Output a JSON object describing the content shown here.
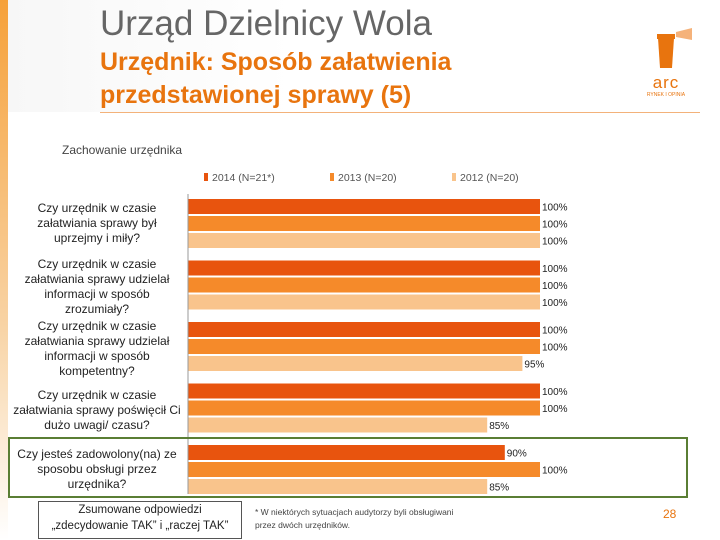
{
  "header": {
    "title": "Urząd Dzielnicy Wola",
    "subtitle_line1": "Urzędnik: Sposób załatwienia",
    "subtitle_line2": "przedstawionej sprawy (5)",
    "logo_text": "arc",
    "logo_small": "RYNEK I OPINIA"
  },
  "colors": {
    "orange_dark": "#e8540e",
    "orange_mid": "#f58a2a",
    "orange_light": "#f9c48c",
    "accent": "#e8740e",
    "highlight_border": "#5a7e34"
  },
  "chart_data": {
    "type": "bar",
    "orientation": "horizontal",
    "title": "Zachowanie urzędnika",
    "categories": [
      "Czy urzędnik w czasie załatwiania sprawy był uprzejmy i miły?",
      "Czy urzędnik w czasie załatwiania sprawy udzielał informacji w sposób zrozumiały?",
      "Czy urzędnik w czasie załatwiania sprawy udzielał informacji w sposób kompetentny?",
      "Czy urzędnik w czasie załatwiania sprawy poświęcił Ci dużo uwagi/ czasu?",
      "Czy jesteś zadowolony(na) ze sposobu obsługi przez urzędnika?"
    ],
    "series": [
      {
        "name": "2014 (N=21*)",
        "values": [
          100,
          100,
          100,
          100,
          90
        ]
      },
      {
        "name": "2013 (N=20)",
        "values": [
          100,
          100,
          100,
          100,
          100
        ]
      },
      {
        "name": "2012 (N=20)",
        "values": [
          100,
          100,
          95,
          85,
          85
        ]
      }
    ],
    "value_suffix": "%",
    "xlim": [
      0,
      100
    ],
    "legend_position": "top",
    "highlighted_category": "Czy jesteś zadowolony(na) ze sposobu obsługi przez urzędnika?"
  },
  "qlabels": [
    "Czy urzędnik w czasie załatwiania sprawy był uprzejmy i miły?",
    "Czy urzędnik w czasie załatwiania sprawy udzielał informacji w sposób zrozumiały?",
    "Czy urzędnik w czasie załatwiania sprawy udzielał informacji w sposób kompetentny?",
    "Czy urzędnik w czasie załatwiania sprawy poświęcił Ci dużo uwagi/ czasu?",
    "Czy jesteś zadowolony(na) ze sposobu obsługi przez urzędnika?"
  ],
  "legend": {
    "s2014": "2014 (N=21*)",
    "s2013": "2013 (N=20)",
    "s2012": "2012 (N=20)"
  },
  "footer": {
    "box_line1": "Zsumowane odpowiedzi",
    "box_line2": "„zdecydowanie TAK” i „raczej TAK”",
    "note": "* W niektórych sytuacjach audytorzy byli obsługiwani przez dwóch urzędników.",
    "page_number": "28"
  }
}
